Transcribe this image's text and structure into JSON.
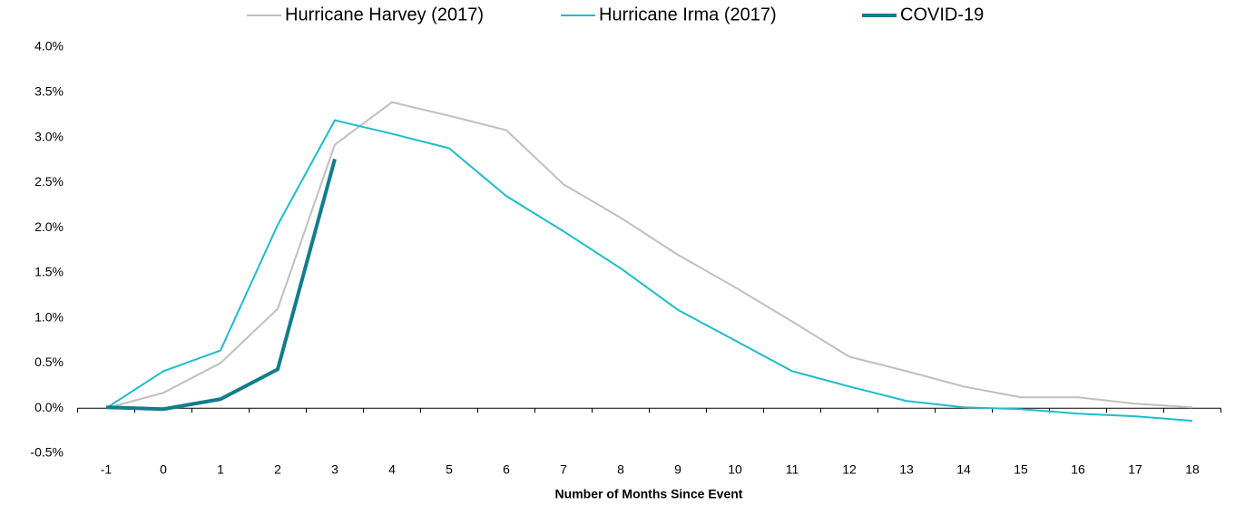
{
  "chart_data": {
    "type": "line",
    "x_label": "Number of Months Since Event",
    "categories": [
      "-1",
      "0",
      "1",
      "2",
      "3",
      "4",
      "5",
      "6",
      "7",
      "8",
      "9",
      "10",
      "11",
      "12",
      "13",
      "14",
      "15",
      "16",
      "17",
      "18"
    ],
    "series": [
      {
        "name": "Hurricane Harvey (2017)",
        "color": "#bfbfbf",
        "values": [
          0,
          0.17,
          0.5,
          1.1,
          2.92,
          3.39,
          3.24,
          3.08,
          2.48,
          2.11,
          1.7,
          1.34,
          0.96,
          0.57,
          0.41,
          0.24,
          0.12,
          0.12,
          0.05,
          0.01
        ]
      },
      {
        "name": "Hurricane Irma (2017)",
        "color": "#1cbccd",
        "values": [
          0,
          0.41,
          0.64,
          2.03,
          3.19,
          3.04,
          2.88,
          2.35,
          1.96,
          1.55,
          1.09,
          0.75,
          0.41,
          0.24,
          0.08,
          0.01,
          -0.01,
          -0.06,
          -0.09,
          -0.14
        ]
      },
      {
        "name": "COVID-19",
        "color": "#127c8c",
        "values": [
          0.01,
          -0.01,
          0.1,
          0.43,
          2.76,
          null,
          null,
          null,
          null,
          null,
          null,
          null,
          null,
          null,
          null,
          null,
          null,
          null,
          null,
          null
        ]
      }
    ],
    "ylim": [
      -0.5,
      4.0
    ],
    "yticks": [
      {
        "value": -0.5,
        "label": "-0.5%"
      },
      {
        "value": 0,
        "label": "0.0%"
      },
      {
        "value": 0.5,
        "label": "0.5%"
      },
      {
        "value": 1.0,
        "label": "1.0%"
      },
      {
        "value": 1.5,
        "label": "1.5%"
      },
      {
        "value": 2.0,
        "label": "2.0%"
      },
      {
        "value": 2.5,
        "label": "2.5%"
      },
      {
        "value": 3.0,
        "label": "3.0%"
      },
      {
        "value": 3.5,
        "label": "3.5%"
      },
      {
        "value": 4.0,
        "label": "4.0%"
      }
    ],
    "grid": false,
    "legend": "top"
  }
}
